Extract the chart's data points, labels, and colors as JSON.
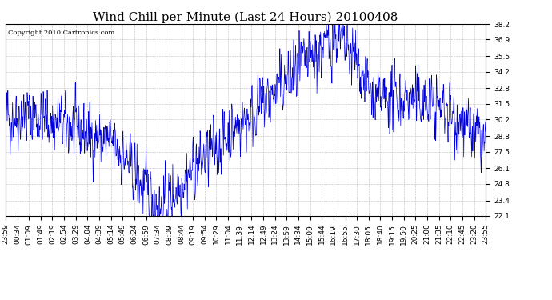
{
  "title": "Wind Chill per Minute (Last 24 Hours) 20100408",
  "copyright": "Copyright 2010 Cartronics.com",
  "line_color": "#0000dd",
  "background_color": "#ffffff",
  "grid_color": "#aaaaaa",
  "ylim": [
    22.1,
    38.2
  ],
  "yticks": [
    22.1,
    23.4,
    24.8,
    26.1,
    27.5,
    28.8,
    30.2,
    31.5,
    32.8,
    34.2,
    35.5,
    36.9,
    38.2
  ],
  "title_fontsize": 11,
  "tick_fontsize": 6.5,
  "copyright_fontsize": 6,
  "num_points": 1440,
  "seed": 42,
  "xtick_labels": [
    "23:59",
    "00:34",
    "01:09",
    "01:49",
    "02:19",
    "02:54",
    "03:29",
    "04:04",
    "04:39",
    "05:14",
    "05:49",
    "06:24",
    "06:59",
    "07:34",
    "08:09",
    "08:44",
    "09:19",
    "09:54",
    "10:29",
    "11:04",
    "11:39",
    "12:14",
    "12:49",
    "13:24",
    "13:59",
    "14:34",
    "15:09",
    "15:44",
    "16:19",
    "16:55",
    "17:30",
    "18:05",
    "18:40",
    "19:15",
    "19:50",
    "20:25",
    "21:00",
    "21:35",
    "22:10",
    "22:45",
    "23:20",
    "23:55"
  ]
}
